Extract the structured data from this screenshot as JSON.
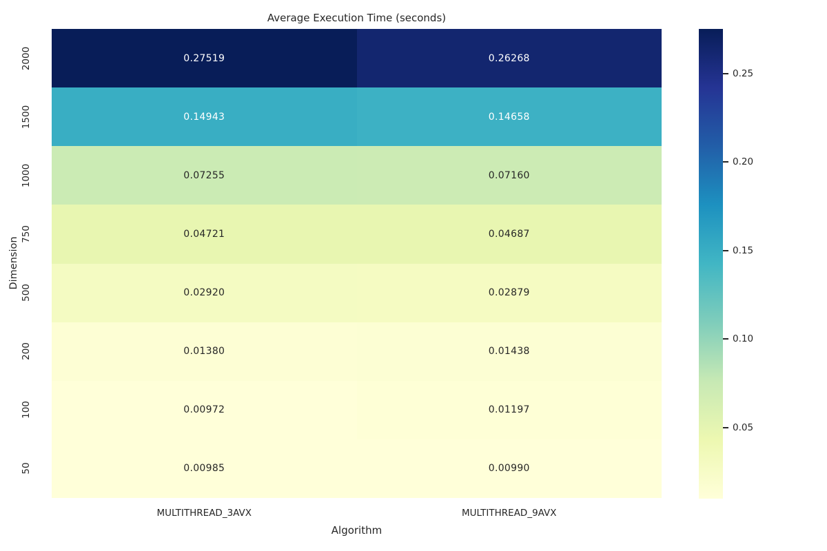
{
  "title": "Average Execution Time (seconds)",
  "chart_data": {
    "type": "heatmap",
    "title": "Average Execution Time (seconds)",
    "xlabel": "Algorithm",
    "ylabel": "Dimension",
    "columns": [
      "MULTITHREAD_3AVX",
      "MULTITHREAD_9AVX"
    ],
    "rows": [
      "2000",
      "1500",
      "1000",
      "750",
      "500",
      "200",
      "100",
      "50"
    ],
    "values": [
      [
        0.27519,
        0.26268
      ],
      [
        0.14943,
        0.14658
      ],
      [
        0.07255,
        0.0716
      ],
      [
        0.04721,
        0.04687
      ],
      [
        0.0292,
        0.02879
      ],
      [
        0.0138,
        0.01438
      ],
      [
        0.00972,
        0.01197
      ],
      [
        0.00985,
        0.0099
      ]
    ],
    "value_labels": [
      [
        "0.27519",
        "0.26268"
      ],
      [
        "0.14943",
        "0.14658"
      ],
      [
        "0.07255",
        "0.07160"
      ],
      [
        "0.04721",
        "0.04687"
      ],
      [
        "0.02920",
        "0.02879"
      ],
      [
        "0.01380",
        "0.01438"
      ],
      [
        "0.00972",
        "0.01197"
      ],
      [
        "0.00985",
        "0.00990"
      ]
    ],
    "vmin": 0.00972,
    "vmax": 0.27519,
    "colorbar_ticks": [
      {
        "value": 0.25,
        "label": "0.25"
      },
      {
        "value": 0.2,
        "label": "0.20"
      },
      {
        "value": 0.15,
        "label": "0.15"
      },
      {
        "value": 0.1,
        "label": "0.10"
      },
      {
        "value": 0.05,
        "label": "0.05"
      }
    ],
    "colormap": {
      "name": "YlGnBu",
      "stops": [
        {
          "pos": 0.0,
          "color": "#ffffd9"
        },
        {
          "pos": 0.125,
          "color": "#edf8b1"
        },
        {
          "pos": 0.25,
          "color": "#c7e9b4"
        },
        {
          "pos": 0.375,
          "color": "#7fcdbb"
        },
        {
          "pos": 0.5,
          "color": "#41b6c4"
        },
        {
          "pos": 0.625,
          "color": "#1d91c0"
        },
        {
          "pos": 0.75,
          "color": "#225ea8"
        },
        {
          "pos": 0.875,
          "color": "#253494"
        },
        {
          "pos": 1.0,
          "color": "#081d58"
        }
      ]
    },
    "legend_position": "right",
    "grid": false
  },
  "colors": {
    "background": "#ffffff",
    "text": "#262626",
    "annotation_dark": "#262626",
    "annotation_light": "#ffffff"
  }
}
